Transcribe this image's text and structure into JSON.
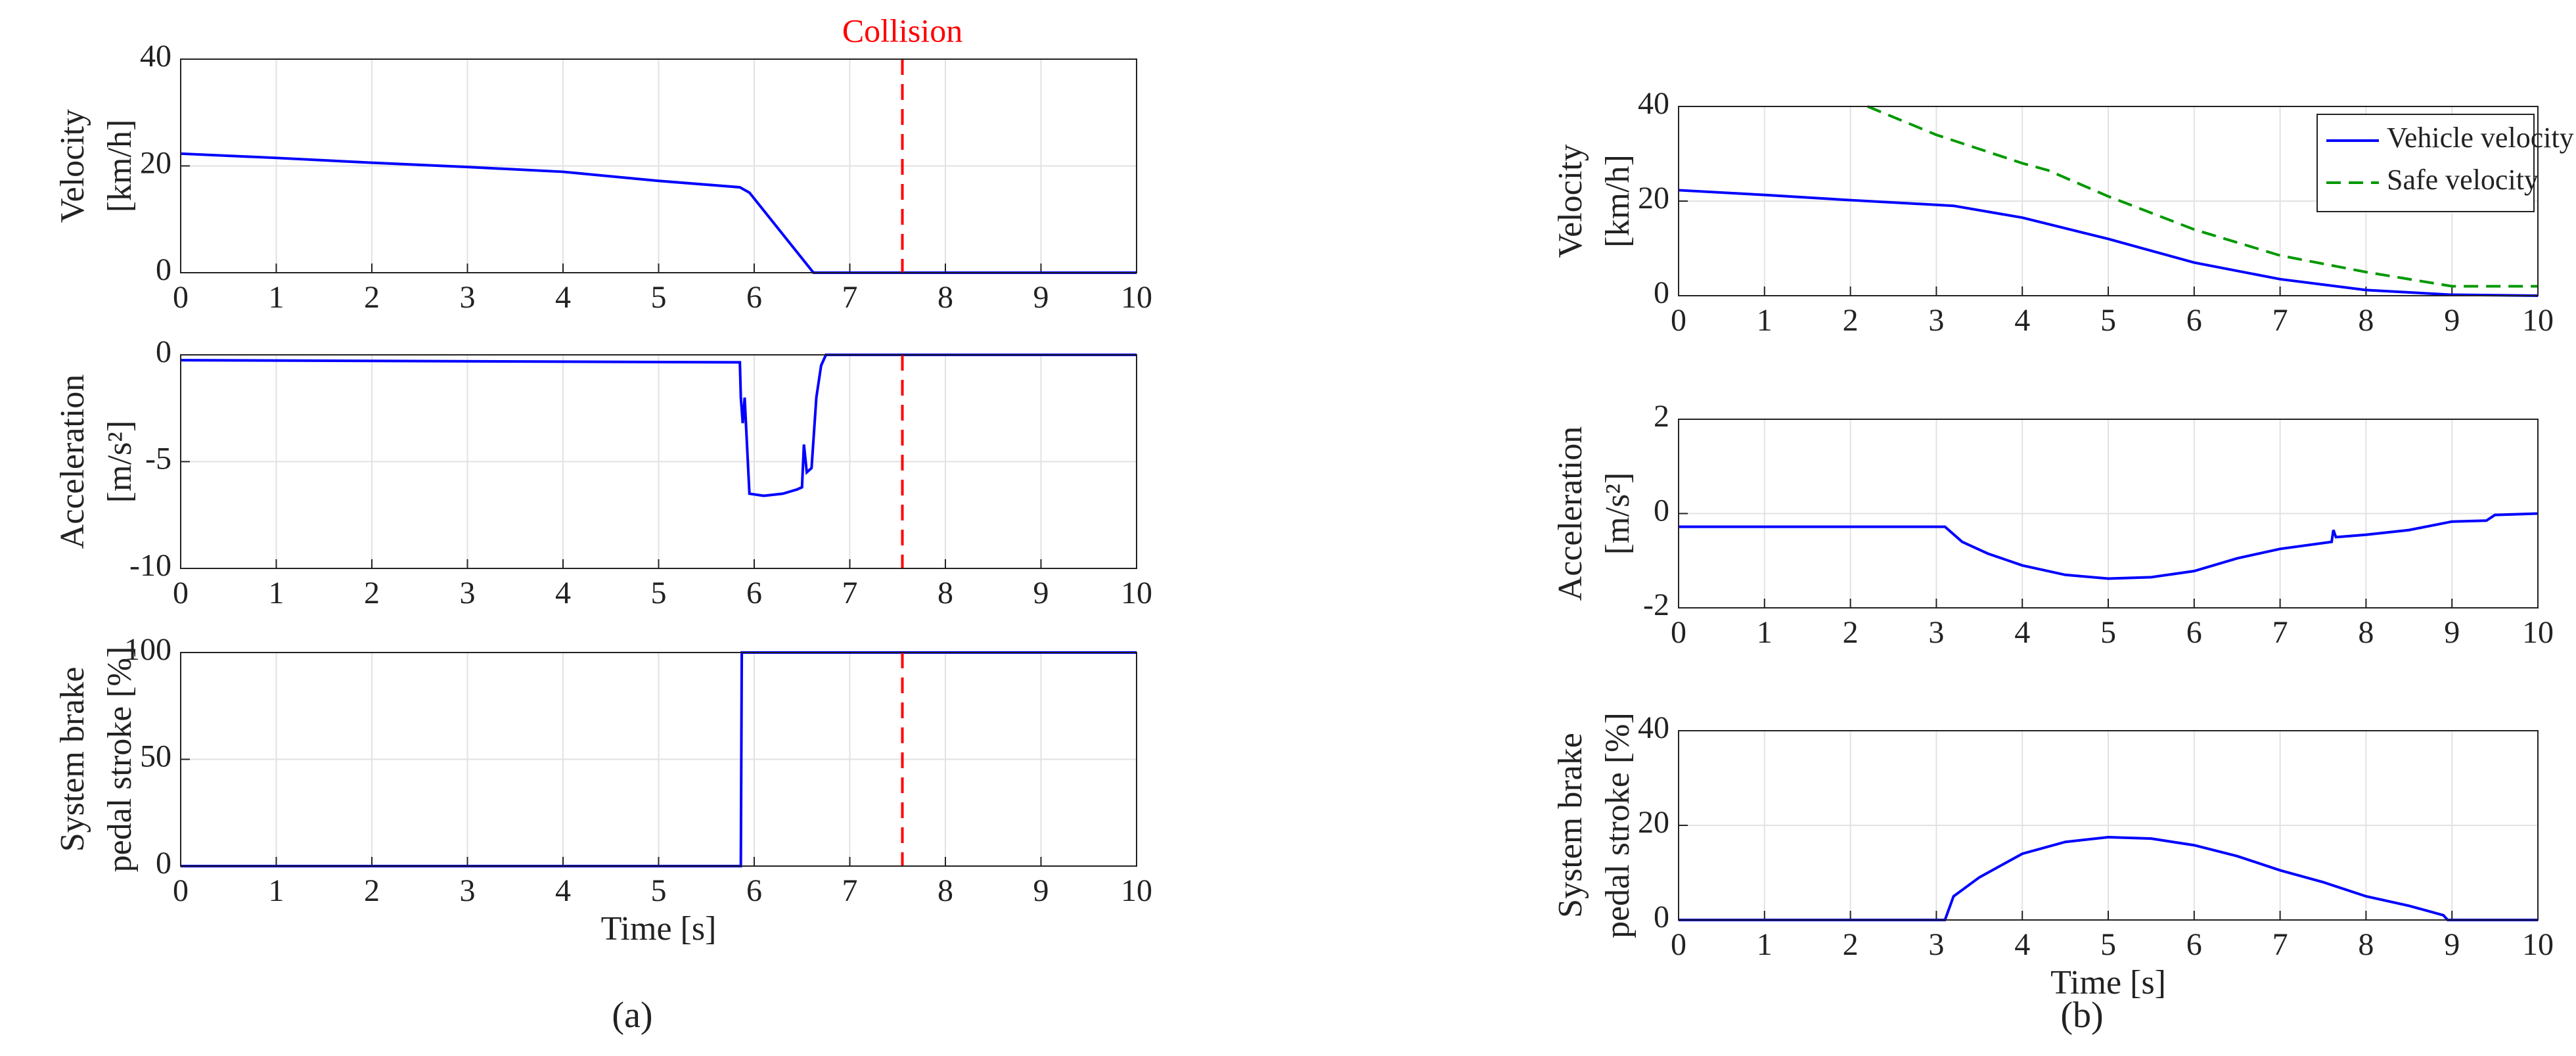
{
  "chart_data": [
    {
      "type": "line",
      "ylabel": [
        "Velocity",
        "[km/h]"
      ],
      "xlim": [
        0,
        10
      ],
      "xticks": [
        0,
        1,
        2,
        3,
        4,
        5,
        6,
        7,
        8,
        9,
        10
      ],
      "ylim": [
        0,
        40
      ],
      "yticks": [
        0,
        20,
        40
      ],
      "grid": true,
      "annotation": "Collision",
      "vline": {
        "x": 7.55,
        "color": "#ff0000"
      },
      "series": [
        {
          "color": "#0000ff",
          "x": [
            0,
            1,
            2,
            3,
            4,
            5,
            5.85,
            5.95,
            6.62,
            7,
            8,
            9,
            10
          ],
          "values": [
            22.3,
            21.5,
            20.6,
            19.8,
            18.9,
            17.2,
            16,
            15,
            0,
            0,
            0,
            0,
            0
          ]
        }
      ]
    },
    {
      "type": "line",
      "ylabel": [
        "Acceleration",
        "[m/s²]"
      ],
      "xlim": [
        0,
        10
      ],
      "xticks": [
        0,
        1,
        2,
        3,
        4,
        5,
        6,
        7,
        8,
        9,
        10
      ],
      "ylim": [
        -10,
        0
      ],
      "yticks": [
        -10,
        -5,
        0
      ],
      "grid": true,
      "vline": {
        "x": 7.55,
        "color": "#ff0000"
      },
      "series": [
        {
          "color": "#0000ff",
          "x": [
            0,
            5.85,
            5.86,
            5.88,
            5.9,
            5.95,
            6.1,
            6.3,
            6.45,
            6.5,
            6.52,
            6.55,
            6.6,
            6.65,
            6.7,
            6.75,
            10
          ],
          "values": [
            -0.25,
            -0.35,
            -2,
            -3.2,
            -2,
            -6.5,
            -6.6,
            -6.5,
            -6.3,
            -6.2,
            -4.2,
            -5.5,
            -5.3,
            -2,
            -0.5,
            0,
            0
          ]
        }
      ]
    },
    {
      "type": "line",
      "ylabel": [
        "System brake",
        "pedal stroke [%]"
      ],
      "xlabel": "Time [s]",
      "caption": "(a)",
      "xlim": [
        0,
        10
      ],
      "xticks": [
        0,
        1,
        2,
        3,
        4,
        5,
        6,
        7,
        8,
        9,
        10
      ],
      "ylim": [
        0,
        100
      ],
      "yticks": [
        0,
        50,
        100
      ],
      "grid": true,
      "vline": {
        "x": 7.55,
        "color": "#ff0000"
      },
      "series": [
        {
          "color": "#0000ff",
          "x": [
            0,
            5.86,
            5.87,
            10
          ],
          "values": [
            0,
            0,
            100,
            100
          ]
        }
      ]
    },
    {
      "type": "line",
      "ylabel": [
        "Velocity",
        "[km/h]"
      ],
      "xlim": [
        0,
        10
      ],
      "xticks": [
        0,
        1,
        2,
        3,
        4,
        5,
        6,
        7,
        8,
        9,
        10
      ],
      "ylim": [
        0,
        40
      ],
      "yticks": [
        0,
        20,
        40
      ],
      "grid": true,
      "legend": "upper right",
      "series": [
        {
          "name": "Vehicle velocity",
          "color": "#0000ff",
          "style": "solid",
          "x": [
            0,
            1,
            2,
            3,
            3.2,
            4,
            5,
            6,
            7,
            8,
            9,
            10
          ],
          "values": [
            22.3,
            21.3,
            20.2,
            19.2,
            19,
            16.5,
            12,
            7,
            3.5,
            1.2,
            0.2,
            0
          ]
        },
        {
          "name": "Safe velocity",
          "color": "#009900",
          "style": "dash",
          "x": [
            2.2,
            3,
            4,
            4.3,
            5,
            6,
            7,
            8,
            9,
            10
          ],
          "values": [
            40,
            34,
            28,
            26.5,
            21,
            14,
            8.5,
            5,
            2,
            2
          ]
        }
      ]
    },
    {
      "type": "line",
      "ylabel": [
        "Acceleration",
        "[m/s²]"
      ],
      "xlim": [
        0,
        10
      ],
      "xticks": [
        0,
        1,
        2,
        3,
        4,
        5,
        6,
        7,
        8,
        9,
        10
      ],
      "ylim": [
        -2,
        2
      ],
      "yticks": [
        -2,
        0,
        2
      ],
      "grid": true,
      "series": [
        {
          "color": "#0000ff",
          "x": [
            0,
            3.1,
            3.3,
            3.6,
            4,
            4.5,
            5,
            5.5,
            6,
            6.5,
            7,
            7.6,
            7.62,
            7.65,
            8,
            8.5,
            9,
            9.4,
            9.5,
            10
          ],
          "values": [
            -0.28,
            -0.28,
            -0.6,
            -0.85,
            -1.1,
            -1.3,
            -1.38,
            -1.35,
            -1.22,
            -0.95,
            -0.75,
            -0.6,
            -0.35,
            -0.5,
            -0.45,
            -0.35,
            -0.17,
            -0.15,
            -0.03,
            0
          ]
        }
      ]
    },
    {
      "type": "line",
      "ylabel": [
        "System brake",
        "pedal stroke [%]"
      ],
      "xlabel": "Time [s]",
      "caption": "(b)",
      "xlim": [
        0,
        10
      ],
      "xticks": [
        0,
        1,
        2,
        3,
        4,
        5,
        6,
        7,
        8,
        9,
        10
      ],
      "ylim": [
        0,
        40
      ],
      "yticks": [
        0,
        20,
        40
      ],
      "grid": true,
      "series": [
        {
          "color": "#0000ff",
          "x": [
            0,
            3.1,
            3.2,
            3.5,
            4,
            4.5,
            5,
            5.5,
            6,
            6.5,
            7,
            7.5,
            8,
            8.5,
            8.9,
            8.95,
            10
          ],
          "values": [
            0,
            0,
            5,
            9,
            14,
            16.5,
            17.5,
            17.2,
            15.8,
            13.5,
            10.5,
            8,
            5,
            3,
            1,
            0,
            0
          ]
        }
      ]
    }
  ]
}
